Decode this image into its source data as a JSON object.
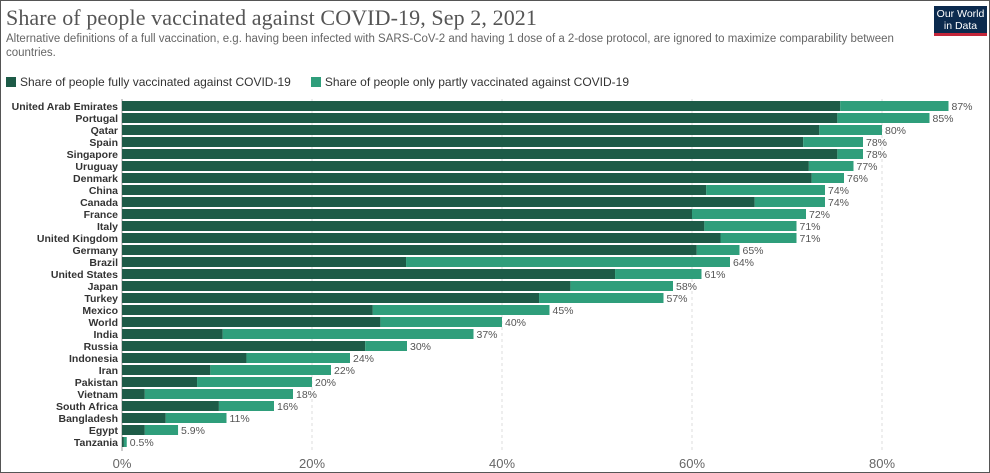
{
  "header": {
    "title": "Share of people vaccinated against COVID-19, Sep 2, 2021",
    "subtitle": "Alternative definitions of a full vaccination, e.g. having been infected with SARS-CoV-2 and having 1 dose of a 2-dose protocol, are ignored to maximize comparability between countries.",
    "logo_line1": "Our World",
    "logo_line2": "in Data"
  },
  "colors": {
    "fully": "#1d5b47",
    "partly": "#2f9e7b",
    "grid": "#dddddd"
  },
  "chart_data": {
    "type": "bar",
    "orientation": "horizontal",
    "stacked": true,
    "title": "Share of people vaccinated against COVID-19, Sep 2, 2021",
    "xlim": [
      0,
      87
    ],
    "xticks": [
      0,
      20,
      40,
      60,
      80
    ],
    "xtick_labels": [
      "0%",
      "20%",
      "40%",
      "60%",
      "80%"
    ],
    "legend": [
      "Share of people fully vaccinated against COVID-19",
      "Share of people only partly vaccinated against COVID-19"
    ],
    "legend_position": "top-left",
    "categories": [
      "United Arab Emirates",
      "Portugal",
      "Qatar",
      "Spain",
      "Singapore",
      "Uruguay",
      "Denmark",
      "China",
      "Canada",
      "France",
      "Italy",
      "United Kingdom",
      "Germany",
      "Brazil",
      "United States",
      "Japan",
      "Turkey",
      "Mexico",
      "World",
      "India",
      "Russia",
      "Indonesia",
      "Iran",
      "Pakistan",
      "Vietnam",
      "South Africa",
      "Bangladesh",
      "Egypt",
      "Tanzania"
    ],
    "series": [
      {
        "name": "Share of people fully vaccinated against COVID-19",
        "values": [
          75.6,
          75.3,
          73.4,
          71.7,
          75.3,
          72.3,
          72.6,
          61.5,
          66.6,
          60.0,
          61.3,
          63.0,
          60.5,
          29.9,
          51.9,
          47.2,
          43.9,
          26.4,
          27.2,
          10.6,
          25.6,
          13.1,
          9.3,
          7.9,
          2.4,
          10.2,
          4.6,
          2.4,
          0.2
        ]
      },
      {
        "name": "Share of people only partly vaccinated against COVID-19",
        "values": [
          11.4,
          9.7,
          6.6,
          6.3,
          2.7,
          4.7,
          3.4,
          12.5,
          7.4,
          12.0,
          9.7,
          8.0,
          4.5,
          34.1,
          9.1,
          10.8,
          13.1,
          18.6,
          12.8,
          26.4,
          4.4,
          10.9,
          12.7,
          12.1,
          15.6,
          5.8,
          6.4,
          3.5,
          0.3
        ]
      }
    ],
    "data_labels": [
      "87%",
      "85%",
      "80%",
      "78%",
      "78%",
      "77%",
      "76%",
      "74%",
      "74%",
      "72%",
      "71%",
      "71%",
      "65%",
      "64%",
      "61%",
      "58%",
      "57%",
      "45%",
      "40%",
      "37%",
      "30%",
      "24%",
      "22%",
      "20%",
      "18%",
      "16%",
      "11%",
      "5.9%",
      "0.5%"
    ]
  }
}
